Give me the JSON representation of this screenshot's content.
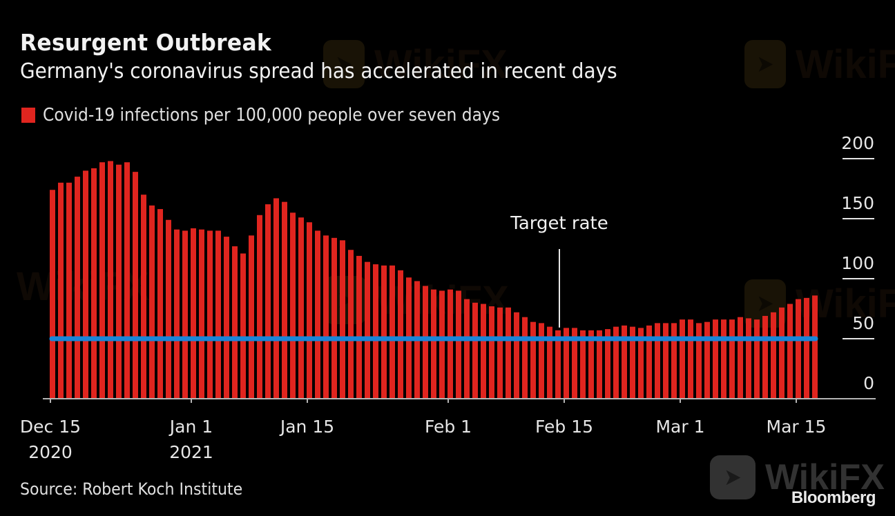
{
  "header": {
    "title": "Resurgent Outbreak",
    "subtitle": "Germany's coronavirus spread has accelerated in recent days"
  },
  "legend": {
    "label": "Covid-19 infections per 100,000 people over seven days",
    "color": "#e0251f"
  },
  "annotation": {
    "label": "Target rate",
    "value": 50,
    "line_color": "#1a86d8"
  },
  "footer": {
    "source": "Source: Robert Koch Institute",
    "brand": "Bloomberg"
  },
  "watermark": {
    "text": "WikiFX",
    "icon": "eagle-icon"
  },
  "chart_data": {
    "type": "bar",
    "title": "Resurgent Outbreak",
    "subtitle": "Germany's coronavirus spread has accelerated in recent days",
    "xlabel": "",
    "ylabel": "",
    "ylim": [
      0,
      200
    ],
    "yticks": [
      0,
      50,
      100,
      150,
      200
    ],
    "y_axis_position": "right",
    "grid": false,
    "legend_position": "top-left",
    "x_start_date": "2020-12-15",
    "x_end_date": "2021-03-17",
    "xtick_labels": [
      {
        "day_index": 0,
        "label": "Dec 15",
        "sublabel": "2020"
      },
      {
        "day_index": 17,
        "label": "Jan 1",
        "sublabel": "2021"
      },
      {
        "day_index": 31,
        "label": "Jan 15",
        "sublabel": ""
      },
      {
        "day_index": 48,
        "label": "Feb 1",
        "sublabel": ""
      },
      {
        "day_index": 62,
        "label": "Feb 15",
        "sublabel": ""
      },
      {
        "day_index": 76,
        "label": "Mar 1",
        "sublabel": ""
      },
      {
        "day_index": 90,
        "label": "Mar 15",
        "sublabel": ""
      }
    ],
    "series": [
      {
        "name": "Covid-19 infections per 100,000 people over seven days",
        "color": "#e0251f",
        "values": [
          174,
          180,
          180,
          185,
          190,
          192,
          197,
          198,
          195,
          197,
          189,
          170,
          161,
          158,
          149,
          141,
          140,
          142,
          141,
          140,
          140,
          135,
          127,
          121,
          136,
          153,
          162,
          167,
          164,
          155,
          151,
          147,
          140,
          136,
          134,
          132,
          124,
          119,
          114,
          112,
          111,
          111,
          107,
          101,
          98,
          94,
          91,
          90,
          91,
          90,
          83,
          80,
          79,
          77,
          76,
          76,
          72,
          68,
          64,
          63,
          60,
          57,
          59,
          59,
          57,
          57,
          57,
          58,
          60,
          61,
          60,
          59,
          61,
          63,
          63,
          63,
          66,
          66,
          63,
          64,
          66,
          66,
          66,
          68,
          67,
          66,
          69,
          72,
          76,
          79,
          83,
          84,
          86
        ]
      }
    ],
    "reference_line": {
      "label": "Target rate",
      "value": 50,
      "color": "#1a86d8",
      "annotation_day_index": 61
    }
  }
}
